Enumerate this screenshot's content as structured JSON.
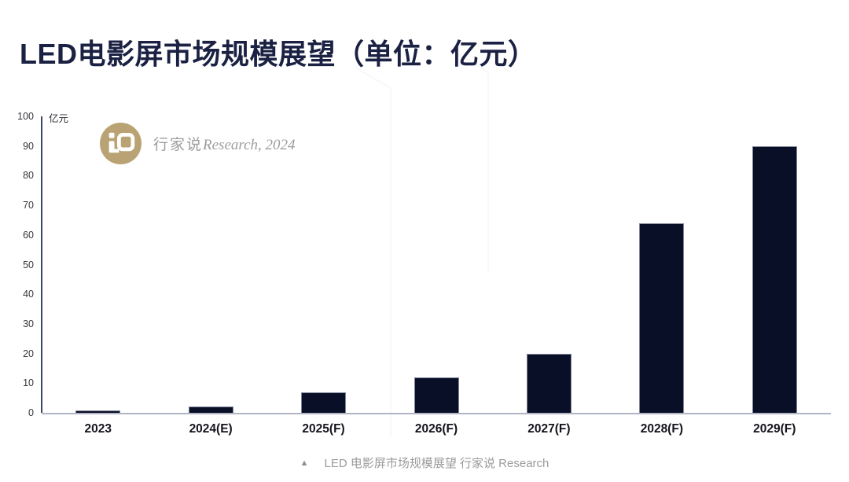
{
  "page": {
    "title": "LED电影屏市场规模展望（单位：亿元）"
  },
  "watermark": {
    "brand": "行家说",
    "suffix": "Research, 2024",
    "logo_color": "#ad935c",
    "logo_icon": "speech-bubble-icon"
  },
  "caption": {
    "marker": "▲",
    "text": "LED 电影屏市场规模展望 行家说 Research"
  },
  "chart_data": {
    "type": "bar",
    "title": "LED电影屏市场规模展望（单位：亿元）",
    "unit_label": "亿元",
    "categories": [
      "2023",
      "2024(E)",
      "2025(F)",
      "2026(F)",
      "2027(F)",
      "2028(F)",
      "2029(F)"
    ],
    "values": [
      0.7,
      2,
      7,
      12,
      20,
      64,
      90
    ],
    "xlabel": "",
    "ylabel": "亿元",
    "ylim": [
      0,
      100
    ],
    "ytick_step": 10,
    "grid": false,
    "legend": "none",
    "bar_color": "#0a0f28",
    "axis_color": "#3d4660",
    "baseline_color": "#b0b5c3"
  }
}
